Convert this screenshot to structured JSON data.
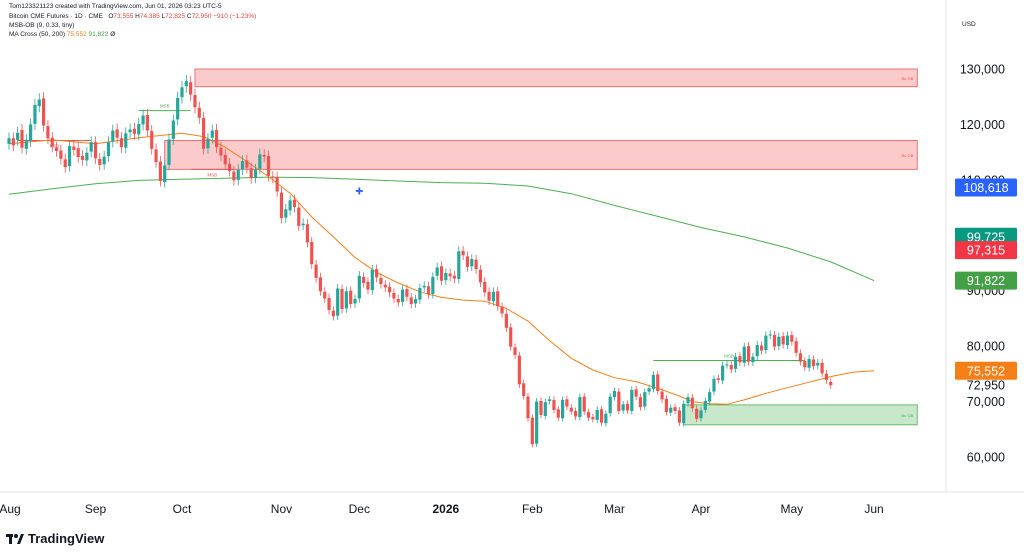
{
  "header": {
    "credit": "Tom123321123 created with TradingView.com, Jun 01, 2026 03:23 UTC-5",
    "symbol": "Bitcoin CME Futures · 1D · CME",
    "o_label": "O",
    "o_value": "73,555",
    "h_label": "H",
    "h_value": "74,385",
    "l_label": "L",
    "l_value": "72,825",
    "c_label": "C",
    "c_value": "72,950",
    "change": "−910 (−1.23%)",
    "indicator1": "MSB-OB (9, 0.33, tiny)",
    "indicator2_name": "MA Cross (50, 200)",
    "indicator2_v1": "75,552",
    "indicator2_v2": "91,822",
    "indicator2_v3": "Ø"
  },
  "currency": "USD",
  "brand": {
    "logo": "tradingview-logo",
    "text": "TradingView"
  },
  "colors": {
    "up": "#26a69a",
    "down": "#ef5350",
    "ma50": "#f57f17",
    "ma200": "#4caf50",
    "bear_ob": "#ef5350",
    "bull_ob": "#4caf50",
    "cross_marker": "#2962ff"
  },
  "chart_data": {
    "type": "candlestick",
    "ylim": [
      54000,
      136000
    ],
    "yticks": [
      {
        "value": 130000,
        "label": "130,000"
      },
      {
        "value": 120000,
        "label": "120,000"
      },
      {
        "value": 110000,
        "label": "110,000"
      },
      {
        "value": 90000,
        "label": "90,000"
      },
      {
        "value": 80000,
        "label": "80,000"
      },
      {
        "value": 70000,
        "label": "70,000"
      },
      {
        "value": 60000,
        "label": "60,000"
      }
    ],
    "xticks": [
      {
        "index": 0,
        "label": "Aug",
        "bold": false
      },
      {
        "index": 20,
        "label": "Sep",
        "bold": false
      },
      {
        "index": 40,
        "label": "Oct",
        "bold": false
      },
      {
        "index": 63,
        "label": "Nov",
        "bold": false
      },
      {
        "index": 81,
        "label": "Dec",
        "bold": false
      },
      {
        "index": 101,
        "label": "2026",
        "bold": true
      },
      {
        "index": 121,
        "label": "Feb",
        "bold": false
      },
      {
        "index": 140,
        "label": "Mar",
        "bold": false
      },
      {
        "index": 160,
        "label": "Apr",
        "bold": false
      },
      {
        "index": 181,
        "label": "May",
        "bold": false
      },
      {
        "index": 200,
        "label": "Jun",
        "bold": false
      }
    ],
    "closes": [
      117500,
      116200,
      118500,
      115800,
      117200,
      120000,
      123500,
      124500,
      119800,
      117500,
      116000,
      115200,
      113800,
      112300,
      116100,
      115400,
      114100,
      113600,
      114900,
      116800,
      113900,
      112700,
      114200,
      116800,
      118900,
      117600,
      115900,
      118400,
      119100,
      118300,
      120100,
      121600,
      118900,
      115600,
      113200,
      109800,
      112600,
      117300,
      120700,
      124800,
      126700,
      127800,
      125400,
      123100,
      121200,
      115600,
      117400,
      118900,
      115900,
      114400,
      112800,
      111600,
      109900,
      111800,
      113400,
      112200,
      110300,
      111900,
      114600,
      114200,
      110700,
      110400,
      107900,
      103100,
      104700,
      106300,
      105100,
      101700,
      102100,
      98700,
      94800,
      92300,
      89900,
      88600,
      86500,
      85400,
      90400,
      86700,
      89900,
      87600,
      88500,
      92700,
      91400,
      90200,
      93800,
      92400,
      91200,
      90600,
      89700,
      88600,
      87900,
      90200,
      88900,
      87600,
      88500,
      90500,
      90900,
      89300,
      92500,
      94200,
      91800,
      93200,
      92600,
      92200,
      97100,
      96400,
      94300,
      95700,
      93900,
      91500,
      89700,
      88200,
      89800,
      87200,
      85900,
      83300,
      79900,
      78400,
      73100,
      71000,
      67000,
      62300,
      70000,
      67600,
      69900,
      70400,
      68500,
      67100,
      70300,
      69100,
      68200,
      67300,
      70800,
      68200,
      67100,
      66800,
      68500,
      66200,
      67800,
      70900,
      71900,
      68300,
      69500,
      68400,
      72100,
      70900,
      69000,
      71700,
      72400,
      74800,
      71900,
      70400,
      68100,
      68900,
      68300,
      66200,
      69600,
      70800,
      68800,
      66900,
      68400,
      70100,
      71700,
      74100,
      73900,
      76500,
      76700,
      75800,
      78100,
      77100,
      79900,
      77200,
      78100,
      80200,
      79200,
      81900,
      82100,
      79900,
      81700,
      80300,
      81900,
      80800,
      78800,
      77200,
      76200,
      77700,
      76400,
      77000,
      75100,
      73900,
      72950
    ],
    "opens": [
      116500,
      117500,
      117200,
      119000,
      115600,
      117000,
      120100,
      123300,
      124700,
      119700,
      117600,
      115800,
      115300,
      113700,
      112500,
      116000,
      115700,
      114300,
      113500,
      115100,
      116800,
      113800,
      112800,
      114300,
      116900,
      119100,
      117500,
      115800,
      118600,
      119200,
      118200,
      120000,
      121700,
      118800,
      115500,
      113300,
      109600,
      112700,
      117400,
      120900,
      124900,
      126900,
      127600,
      125300,
      123000,
      121200,
      115700,
      117600,
      119000,
      115800,
      114500,
      112900,
      111500,
      110000,
      111900,
      113500,
      112100,
      110400,
      112000,
      114500,
      114300,
      110600,
      110500,
      107700,
      103200,
      104500,
      106400,
      105000,
      101800,
      102000,
      98800,
      94700,
      92400,
      89800,
      88700,
      86400,
      85500,
      90300,
      86800,
      90000,
      87700,
      88600,
      92500,
      91600,
      90100,
      93900,
      92300,
      91100,
      90700,
      89600,
      88500,
      88000,
      90300,
      88800,
      87700,
      88400,
      90600,
      90800,
      89400,
      92700,
      94400,
      91900,
      93100,
      92700,
      92100,
      97200,
      96200,
      94400,
      95600,
      93800,
      91600,
      89800,
      88100,
      89900,
      87100,
      85800,
      83400,
      79800,
      78300,
      73300,
      70900,
      67100,
      62400,
      70100,
      67400,
      70100,
      70300,
      68600,
      67000,
      70400,
      68900,
      68300,
      67200,
      70900,
      68100,
      67200,
      66700,
      68600,
      66100,
      67900,
      70800,
      71800,
      68400,
      69600,
      68300,
      72200,
      70800,
      69100,
      71800,
      72300,
      74900,
      71800,
      70500,
      68000,
      69000,
      68400,
      66100,
      69700,
      70700,
      68700,
      67000,
      68500,
      70000,
      71800,
      74200,
      73800,
      76600,
      76600,
      75900,
      78200,
      77000,
      80000,
      77100,
      78200,
      80100,
      79300,
      82000,
      82000,
      80000,
      81800,
      80200,
      82000,
      80900,
      78700,
      77300,
      76100,
      77600,
      76500,
      77000,
      75000,
      73555
    ],
    "ma50": [
      [
        0,
        116500
      ],
      [
        10,
        117200
      ],
      [
        20,
        116500
      ],
      [
        30,
        117600
      ],
      [
        40,
        118400
      ],
      [
        45,
        117800
      ],
      [
        50,
        115900
      ],
      [
        55,
        113300
      ],
      [
        60,
        110600
      ],
      [
        65,
        107600
      ],
      [
        70,
        103300
      ],
      [
        75,
        99700
      ],
      [
        80,
        96000
      ],
      [
        85,
        93300
      ],
      [
        90,
        91400
      ],
      [
        95,
        89800
      ],
      [
        100,
        88800
      ],
      [
        105,
        88300
      ],
      [
        110,
        88100
      ],
      [
        115,
        86800
      ],
      [
        120,
        84500
      ],
      [
        125,
        81000
      ],
      [
        130,
        77800
      ],
      [
        135,
        75700
      ],
      [
        140,
        74300
      ],
      [
        145,
        73600
      ],
      [
        150,
        72400
      ],
      [
        155,
        71000
      ],
      [
        158,
        70000
      ],
      [
        162,
        69600
      ],
      [
        166,
        69500
      ],
      [
        170,
        70300
      ],
      [
        175,
        71500
      ],
      [
        180,
        72500
      ],
      [
        185,
        73500
      ],
      [
        190,
        74500
      ],
      [
        195,
        75300
      ],
      [
        200,
        75552
      ]
    ],
    "ma200": [
      [
        0,
        107400
      ],
      [
        10,
        108400
      ],
      [
        20,
        109300
      ],
      [
        30,
        109900
      ],
      [
        40,
        110100
      ],
      [
        50,
        110300
      ],
      [
        60,
        110500
      ],
      [
        70,
        110400
      ],
      [
        80,
        110100
      ],
      [
        90,
        109800
      ],
      [
        100,
        109500
      ],
      [
        110,
        109400
      ],
      [
        120,
        108900
      ],
      [
        130,
        107500
      ],
      [
        140,
        105400
      ],
      [
        150,
        103400
      ],
      [
        160,
        101400
      ],
      [
        170,
        99700
      ],
      [
        180,
        97700
      ],
      [
        190,
        95200
      ],
      [
        200,
        91822
      ]
    ],
    "cross_point": [
      81,
      108000
    ],
    "order_blocks": [
      {
        "kind": "bearish",
        "label": "Bu OB",
        "x1": 43,
        "x2": 210,
        "y1": 126800,
        "y2": 130000
      },
      {
        "kind": "bearish",
        "label": "Bu OB",
        "x1": 36,
        "x2": 210,
        "y1": 111900,
        "y2": 117100
      },
      {
        "kind": "bullish",
        "label": "Bu OB",
        "x1": 156,
        "x2": 210,
        "y1": 65800,
        "y2": 69400
      }
    ],
    "msb_lines": [
      {
        "label": "MSB",
        "x1": 2,
        "x2": 19,
        "y": 117100,
        "color": "#ef5350"
      },
      {
        "label": "MSB",
        "x1": 30,
        "x2": 42,
        "y": 122500,
        "color": "#4caf50"
      },
      {
        "label": "MSB",
        "x1": 42,
        "x2": 52,
        "y": 111900,
        "color": "#ef5350"
      },
      {
        "label": "MSB",
        "x1": 149,
        "x2": 184,
        "y": 77400,
        "color": "#4caf50"
      }
    ],
    "price_labels": [
      {
        "value": 108618,
        "label": "108,618",
        "color": "#2962ff"
      },
      {
        "value": 99725,
        "label": "99,725",
        "color": "#089981"
      },
      {
        "value": 97315,
        "label": "97,315",
        "color": "#f23645"
      },
      {
        "value": 91822,
        "label": "91,822",
        "color": "#43a047"
      },
      {
        "value": 75552,
        "label": "75,552",
        "color": "#f57f17"
      }
    ],
    "last_price_label": "72,950"
  }
}
